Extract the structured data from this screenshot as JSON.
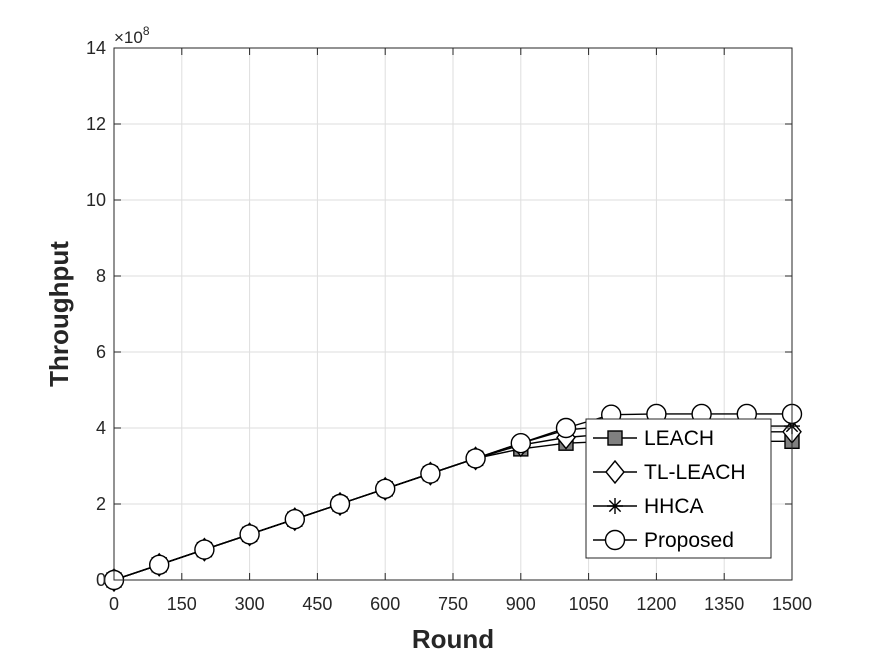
{
  "chart_data": {
    "type": "line",
    "xlabel": "Round",
    "ylabel": "Throughput",
    "y_exponent_label": "×10",
    "y_exponent_power": "8",
    "xlim": [
      0,
      1500
    ],
    "ylim": [
      0,
      14
    ],
    "grid": true,
    "legend_position": "lower-right",
    "x_ticks": [
      0,
      150,
      300,
      450,
      600,
      750,
      900,
      1050,
      1200,
      1350,
      1500
    ],
    "y_ticks": [
      0,
      2,
      4,
      6,
      8,
      10,
      12,
      14
    ],
    "x": [
      0,
      100,
      200,
      300,
      400,
      500,
      600,
      700,
      800,
      900,
      1000,
      1100,
      1200,
      1300,
      1400,
      1500
    ],
    "series": [
      {
        "name": "LEACH",
        "marker": "square",
        "fill": "#808080",
        "values": [
          0,
          0.4,
          0.8,
          1.2,
          1.6,
          2.0,
          2.4,
          2.8,
          3.2,
          3.45,
          3.6,
          3.65,
          3.65,
          3.65,
          3.65,
          3.65
        ]
      },
      {
        "name": "TL-LEACH",
        "marker": "diamond",
        "fill": "#ffffff",
        "values": [
          0,
          0.4,
          0.8,
          1.2,
          1.6,
          2.0,
          2.4,
          2.8,
          3.2,
          3.55,
          3.75,
          3.85,
          3.9,
          3.9,
          3.9,
          3.9
        ]
      },
      {
        "name": "HHCA",
        "marker": "asterisk",
        "fill": "none",
        "values": [
          0,
          0.4,
          0.8,
          1.2,
          1.6,
          2.0,
          2.4,
          2.8,
          3.2,
          3.6,
          3.95,
          4.05,
          4.05,
          4.05,
          4.05,
          4.05
        ]
      },
      {
        "name": "Proposed",
        "marker": "circle",
        "fill": "#ffffff",
        "values": [
          0,
          0.4,
          0.8,
          1.2,
          1.6,
          2.0,
          2.4,
          2.8,
          3.2,
          3.6,
          4.0,
          4.35,
          4.37,
          4.37,
          4.37,
          4.37
        ]
      }
    ]
  }
}
